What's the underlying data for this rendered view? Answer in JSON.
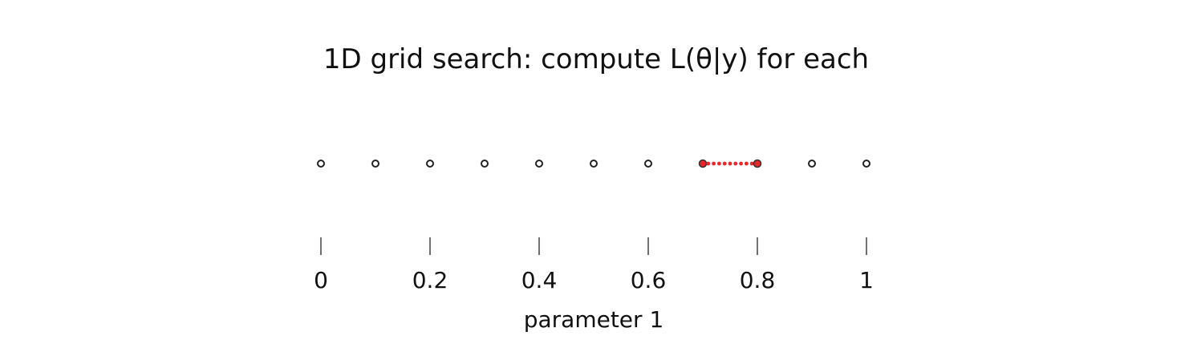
{
  "chart_data": {
    "type": "scatter",
    "title": "1D grid search: compute L(θ|y) for each",
    "xlabel": "parameter 1",
    "xlim": [
      0,
      1
    ],
    "x_ticks": [
      0,
      0.2,
      0.4,
      0.6,
      0.8,
      1
    ],
    "x_tick_labels": [
      "0",
      "0.2",
      "0.4",
      "0.6",
      "0.8",
      "1"
    ],
    "grid": false,
    "series": [
      {
        "points_x": [
          0,
          0.1,
          0.2,
          0.3,
          0.4,
          0.5,
          0.6,
          0.7,
          0.8,
          0.9,
          1
        ],
        "style": "hollow-circle",
        "color": "#222222"
      },
      {
        "points_x": [
          0.7,
          0.71,
          0.72,
          0.73,
          0.74,
          0.75,
          0.76,
          0.77,
          0.78,
          0.79,
          0.8
        ],
        "style": "filled-circle",
        "color": "#e8282b",
        "endpoints_x": [
          0.7,
          0.8
        ]
      }
    ]
  }
}
